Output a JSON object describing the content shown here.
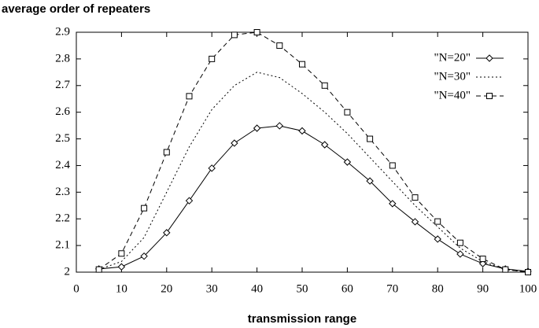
{
  "chart_data": {
    "type": "line",
    "title": "average order of repeaters",
    "x_label": "transmission range",
    "x": [
      5,
      10,
      15,
      20,
      25,
      30,
      35,
      40,
      45,
      50,
      55,
      60,
      65,
      70,
      75,
      80,
      85,
      90,
      95,
      100
    ],
    "series": [
      {
        "name": "\"N=20\"",
        "color": "#000000",
        "values": [
          2.012,
          2.02,
          2.06,
          2.148,
          2.268,
          2.39,
          2.484,
          2.54,
          2.549,
          2.53,
          2.478,
          2.413,
          2.342,
          2.257,
          2.189,
          2.124,
          2.068,
          2.032,
          2.012,
          2.003
        ]
      },
      {
        "name": "\"N=30\"",
        "color": "#000000",
        "values": [
          2.01,
          2.04,
          2.13,
          2.3,
          2.47,
          2.61,
          2.7,
          2.75,
          2.73,
          2.67,
          2.6,
          2.52,
          2.43,
          2.34,
          2.25,
          2.17,
          2.09,
          2.04,
          2.01,
          2.0
        ]
      },
      {
        "name": "\"N=40\"",
        "color": "#000000",
        "values": [
          2.01,
          2.07,
          2.24,
          2.45,
          2.66,
          2.8,
          2.89,
          2.9,
          2.85,
          2.78,
          2.7,
          2.6,
          2.5,
          2.4,
          2.28,
          2.19,
          2.11,
          2.05,
          2.01,
          2.0
        ]
      }
    ],
    "xlim": [
      0,
      100
    ],
    "xticks": [
      0,
      10,
      20,
      30,
      40,
      50,
      60,
      70,
      80,
      90,
      100
    ],
    "ylim": [
      2,
      2.9
    ],
    "yticks": [
      2,
      2.1,
      2.2,
      2.3,
      2.4,
      2.5,
      2.6,
      2.7,
      2.8,
      2.9
    ],
    "legend": "upper right"
  }
}
